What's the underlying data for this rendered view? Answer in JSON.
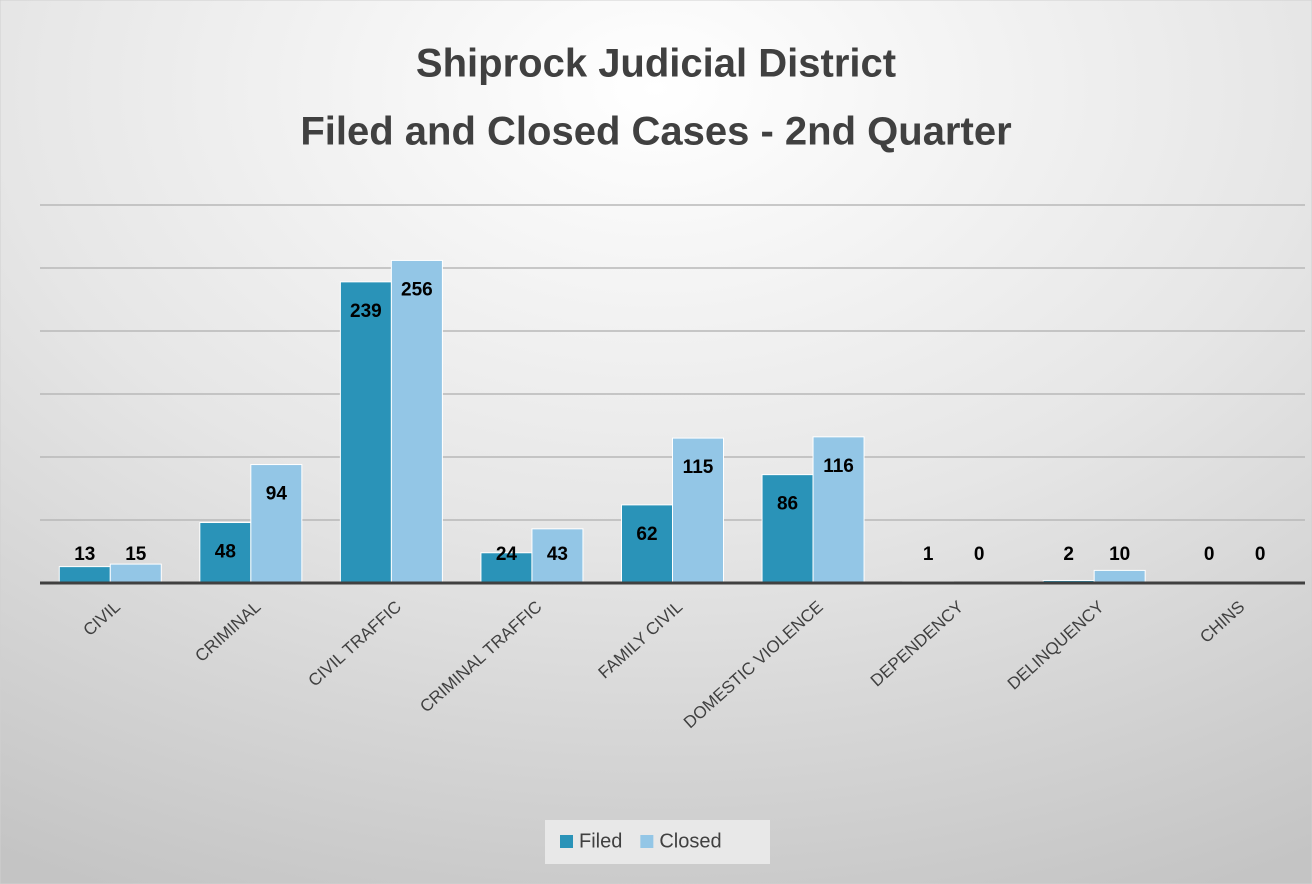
{
  "chart_data": {
    "type": "bar",
    "title": [
      "Shiprock Judicial District",
      "Filed and Closed Cases - 2nd Quarter"
    ],
    "categories": [
      "CIVIL",
      "CRIMINAL",
      "CIVIL TRAFFIC",
      "CRIMINAL TRAFFIC",
      "FAMILY CIVIL",
      "DOMESTIC VIOLENCE",
      "DEPENDENCY",
      "DELINQUENCY",
      "CHINS"
    ],
    "series": [
      {
        "name": "Filed",
        "color": "#2a93b8",
        "values": [
          13,
          48,
          239,
          24,
          62,
          86,
          1,
          2,
          0
        ]
      },
      {
        "name": "Closed",
        "color": "#93c6e6",
        "values": [
          15,
          94,
          256,
          43,
          115,
          116,
          0,
          10,
          0
        ]
      }
    ],
    "ylim": [
      0,
      300
    ],
    "yticks": [
      0,
      50,
      100,
      150,
      200,
      250,
      300
    ],
    "grid": true,
    "legend": "bottom"
  }
}
